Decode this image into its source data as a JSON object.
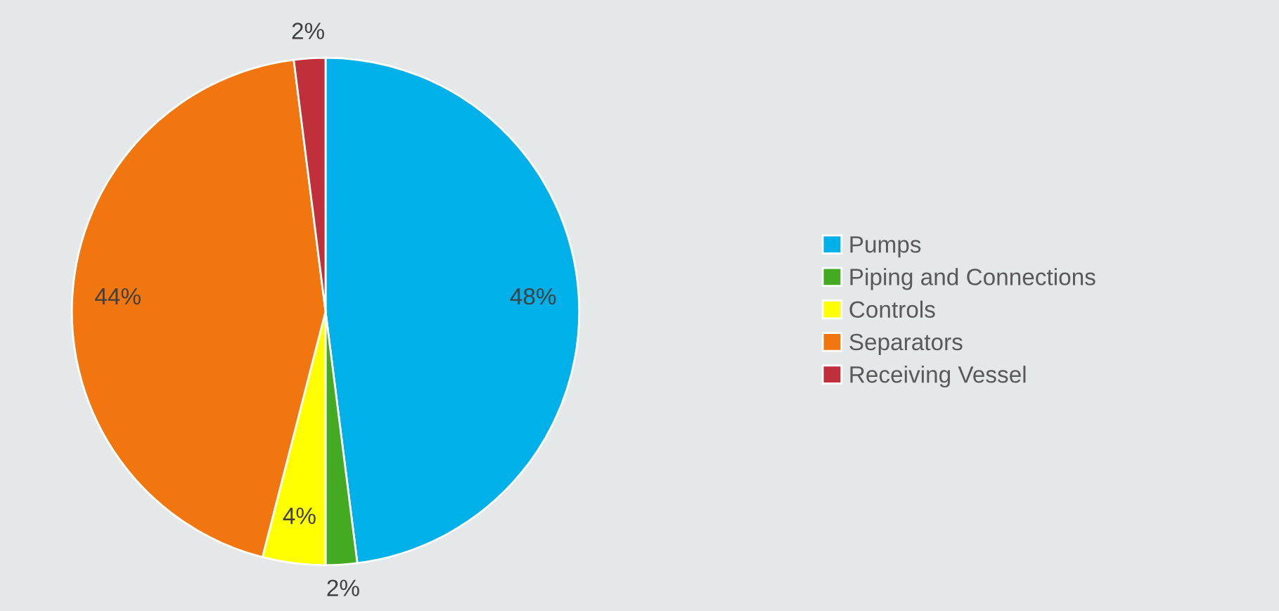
{
  "chart_data": {
    "type": "pie",
    "categories": [
      "Pumps",
      "Piping and Connections",
      "Controls",
      "Separators",
      "Receiving Vessel"
    ],
    "values": [
      48,
      2,
      4,
      44,
      2
    ],
    "colors": [
      "#00b0e8",
      "#44aa22",
      "#ffff00",
      "#f27610",
      "#c0303a"
    ],
    "value_labels": [
      "48%",
      "2%",
      "4%",
      "44%",
      "2%"
    ],
    "legend": "right"
  }
}
